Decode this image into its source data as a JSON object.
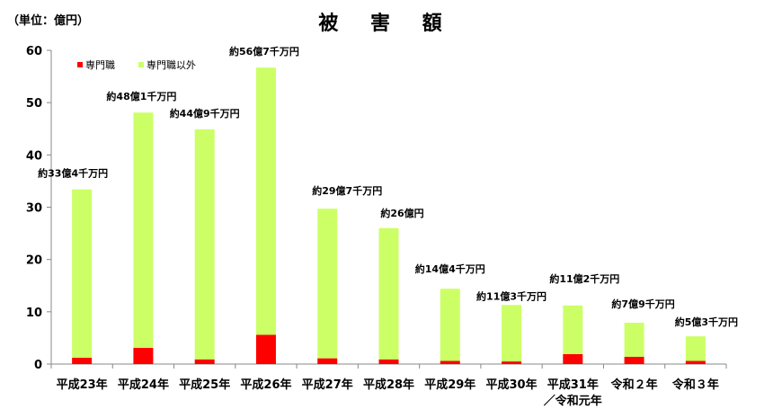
{
  "chart_data": {
    "type": "bar",
    "stacked": true,
    "title": "被 害 額",
    "unit_label": "（単位：億円）",
    "categories": [
      "平成23年",
      "平成24年",
      "平成25年",
      "平成26年",
      "平成27年",
      "平成28年",
      "平成29年",
      "平成30年",
      "平成31年\n／令和元年",
      "令和２年",
      "令和３年"
    ],
    "series": [
      {
        "name": "専門職",
        "color": "#ff0000",
        "values": [
          1.2,
          3.1,
          0.9,
          5.6,
          1.1,
          0.9,
          0.6,
          0.5,
          1.9,
          1.4,
          0.6
        ]
      },
      {
        "name": "専門職以外",
        "color": "#ccff66",
        "values": [
          32.2,
          45.0,
          44.0,
          51.1,
          28.6,
          25.1,
          13.8,
          10.8,
          9.3,
          6.5,
          4.7
        ]
      }
    ],
    "totals": [
      33.4,
      48.1,
      44.9,
      56.7,
      29.7,
      26.0,
      14.4,
      11.3,
      11.2,
      7.9,
      5.3
    ],
    "data_labels": [
      "約33億4千万円",
      "約48億1千万円",
      "約44億9千万円",
      "約56億7千万円",
      "約29億7千万円",
      "約26億円",
      "約14億4千万円",
      "約11億3千万円",
      "約11億2千万円",
      "約7億9千万円",
      "約5億3千万円"
    ],
    "ylim": [
      0,
      60
    ],
    "yticks": [
      0,
      10,
      20,
      30,
      40,
      50,
      60
    ],
    "grid": false,
    "legend_position": "top-left"
  }
}
